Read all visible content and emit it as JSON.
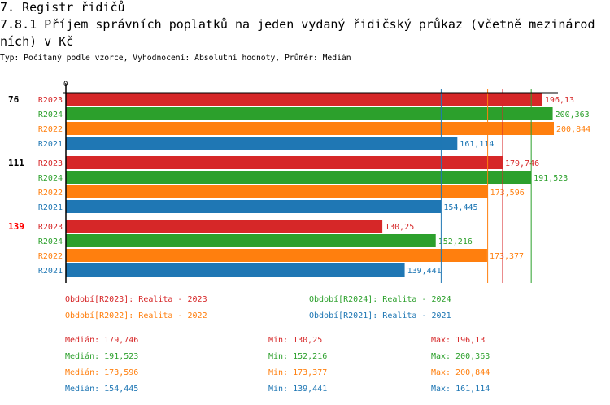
{
  "header": {
    "section": "7. Registr řidičů",
    "title_line1": "7.8.1 Příjem správních poplatků na jeden vydaný řidičský průkaz (včetně mezinárod",
    "title_line2": "ních) v Kč",
    "subtitle": "Typ: Počítaný podle vzorce, Vyhodnocení: Absolutní hodnoty, Průměr: Medián"
  },
  "colors": {
    "R2023": "#d62728",
    "R2024": "#2ca02c",
    "R2022": "#ff7f0e",
    "R2021": "#1f77b4",
    "highlight": "#ff0000"
  },
  "chart_data": {
    "type": "bar",
    "orientation": "horizontal",
    "axis_tick": "0",
    "xlim": [
      0,
      201
    ],
    "groups": [
      {
        "label": "76",
        "highlight": false,
        "bars": [
          {
            "series": "R2023",
            "value": 196.13,
            "label": "196,13"
          },
          {
            "series": "R2024",
            "value": 200.363,
            "label": "200,363"
          },
          {
            "series": "R2022",
            "value": 200.844,
            "label": "200,844"
          },
          {
            "series": "R2021",
            "value": 161.114,
            "label": "161,114"
          }
        ]
      },
      {
        "label": "111",
        "highlight": false,
        "bars": [
          {
            "series": "R2023",
            "value": 179.746,
            "label": "179,746"
          },
          {
            "series": "R2024",
            "value": 191.523,
            "label": "191,523"
          },
          {
            "series": "R2022",
            "value": 173.596,
            "label": "173,596"
          },
          {
            "series": "R2021",
            "value": 154.445,
            "label": "154,445"
          }
        ]
      },
      {
        "label": "139",
        "highlight": true,
        "bars": [
          {
            "series": "R2023",
            "value": 130.25,
            "label": "130,25"
          },
          {
            "series": "R2024",
            "value": 152.216,
            "label": "152,216"
          },
          {
            "series": "R2022",
            "value": 173.377,
            "label": "173,377"
          },
          {
            "series": "R2021",
            "value": 139.441,
            "label": "139,441"
          }
        ]
      }
    ],
    "median_lines": [
      {
        "series": "R2023",
        "value": 179.746
      },
      {
        "series": "R2024",
        "value": 191.523
      },
      {
        "series": "R2022",
        "value": 173.596
      },
      {
        "series": "R2021",
        "value": 154.445
      }
    ]
  },
  "legend": [
    {
      "series": "R2023",
      "text": "Období[R2023]: Realita - 2023"
    },
    {
      "series": "R2024",
      "text": "Období[R2024]: Realita - 2024"
    },
    {
      "series": "R2022",
      "text": "Období[R2022]: Realita - 2022"
    },
    {
      "series": "R2021",
      "text": "Období[R2021]: Realita - 2021"
    }
  ],
  "stats": [
    {
      "series": "R2023",
      "median": "Medián: 179,746",
      "min": "Min: 130,25",
      "max": "Max: 196,13"
    },
    {
      "series": "R2024",
      "median": "Medián: 191,523",
      "min": "Min: 152,216",
      "max": "Max: 200,363"
    },
    {
      "series": "R2022",
      "median": "Medián: 173,596",
      "min": "Min: 173,377",
      "max": "Max: 200,844"
    },
    {
      "series": "R2021",
      "median": "Medián: 154,445",
      "min": "Min: 139,441",
      "max": "Max: 161,114"
    }
  ]
}
